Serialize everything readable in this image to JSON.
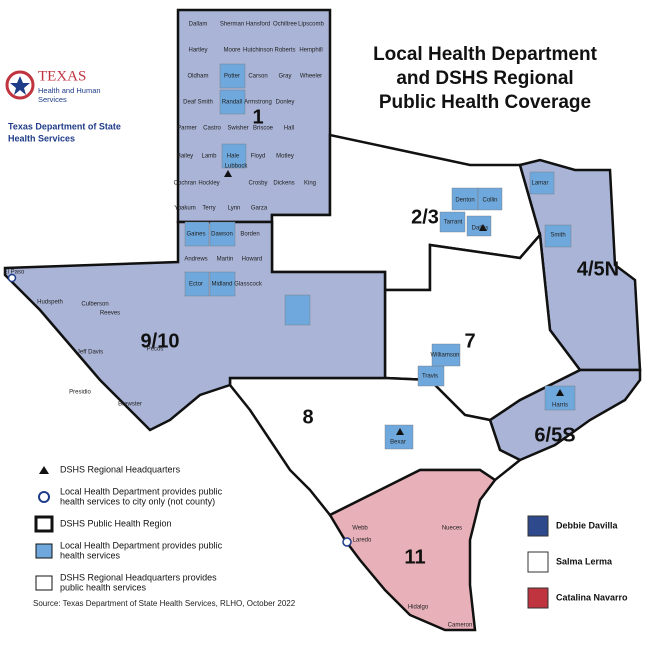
{
  "title": [
    "Local Health Department",
    "and DSHS Regional",
    "Public Health Coverage"
  ],
  "logo": {
    "org": "TEXAS",
    "sub1": "Health and Human",
    "sub2": "Services",
    "dept1": "Texas Department of State",
    "dept2": "Health Services"
  },
  "regions": [
    {
      "label": "1",
      "color": "#a9b4d6"
    },
    {
      "label": "2/3",
      "color": "#ffffff"
    },
    {
      "label": "4/5N",
      "color": "#a9b4d6"
    },
    {
      "label": "6/5S",
      "color": "#a9b4d6"
    },
    {
      "label": "7",
      "color": "#ffffff"
    },
    {
      "label": "8",
      "color": "#ffffff"
    },
    {
      "label": "9/10",
      "color": "#a9b4d6"
    },
    {
      "label": "11",
      "color": "#e8b0b8"
    }
  ],
  "counties": [
    "Dallam",
    "Sherman",
    "Hansford",
    "Ochiltree",
    "Lipscomb",
    "Hartley",
    "Moore",
    "Hutchinson",
    "Roberts",
    "Hemphill",
    "Oldham",
    "Potter",
    "Carson",
    "Gray",
    "Wheeler",
    "Deaf Smith",
    "Randall",
    "Armstrong",
    "Donley",
    "Parmer",
    "Castro",
    "Swisher",
    "Briscoe",
    "Hall",
    "Bailey",
    "Lamb",
    "Hale",
    "Floyd",
    "Motley",
    "Cochran",
    "Hockley",
    "Lubbock",
    "Crosby",
    "Dickens",
    "King",
    "Yoakum",
    "Terry",
    "Lynn",
    "Garza",
    "Gaines",
    "Dawson",
    "Borden",
    "Andrews",
    "Martin",
    "Howard",
    "Ector",
    "Midland",
    "Glasscock",
    "Hudspeth",
    "Culberson",
    "Jeff Davis",
    "Presidio",
    "Brewster",
    "Pecos",
    "Reeves",
    "Tarrant",
    "Dallas",
    "Denton",
    "Collin",
    "Travis",
    "Williamson",
    "Bexar",
    "Harris",
    "Webb",
    "Laredo",
    "Hidalgo",
    "Cameron",
    "Nueces",
    "Smith",
    "Lamar",
    "El Paso"
  ],
  "legend": [
    {
      "label": "DSHS Regional Headquarters",
      "icon": "triangle"
    },
    {
      "label": [
        "Local Health Department provides public",
        "health services to city only (not county)"
      ],
      "icon": "circle"
    },
    {
      "label": "DSHS Public Health Region",
      "icon": "box-bold"
    },
    {
      "label": [
        "Local Health Department provides public",
        "health services"
      ],
      "icon": "box-blue"
    },
    {
      "label": [
        "DSHS Regional Headquarters provides",
        "public health services"
      ],
      "icon": "box-white"
    }
  ],
  "directors": [
    {
      "name": "Debbie Davilla",
      "color": "#2e4a8c"
    },
    {
      "name": "Salma Lerma",
      "color": "#ffffff"
    },
    {
      "name": "Catalina Navarro",
      "color": "#c0343f"
    }
  ],
  "source": "Source: Texas Department of State Health Services, RLHO, October 2022"
}
